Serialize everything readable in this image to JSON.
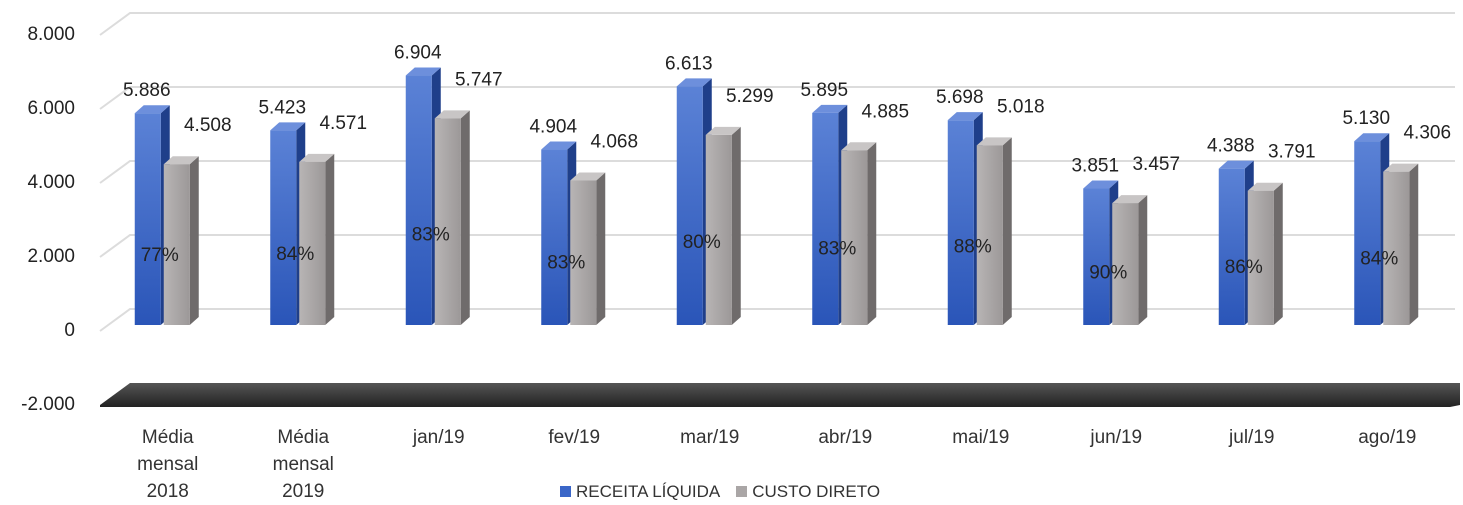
{
  "chart_data": {
    "type": "bar3d",
    "categories": [
      "Média mensal 2018",
      "Média mensal 2019",
      "jan/19",
      "fev/19",
      "mar/19",
      "abr/19",
      "mai/19",
      "jun/19",
      "jul/19",
      "ago/19"
    ],
    "series": [
      {
        "name": "RECEITA LÍQUIDA",
        "color": "#3a66c8",
        "values": [
          5886,
          5423,
          6904,
          4904,
          6613,
          5895,
          5698,
          3851,
          4388,
          5130
        ],
        "value_labels": [
          "5.886",
          "5.423",
          "6.904",
          "4.904",
          "6.613",
          "5.895",
          "5.698",
          "3.851",
          "4.388",
          "5.130"
        ]
      },
      {
        "name": "CUSTO DIRETO",
        "color": "#aaa6a6",
        "values": [
          4508,
          4571,
          5747,
          4068,
          5299,
          4885,
          5018,
          3457,
          3791,
          4306
        ],
        "value_labels": [
          "4.508",
          "4.571",
          "5.747",
          "4.068",
          "5.299",
          "4.885",
          "5.018",
          "3.457",
          "3.791",
          "4.306"
        ],
        "percent_labels": [
          "77%",
          "84%",
          "83%",
          "83%",
          "80%",
          "83%",
          "88%",
          "90%",
          "86%",
          "84%"
        ]
      }
    ],
    "ylim": [
      -2000,
      8000
    ],
    "yticks": [
      {
        "value": -2000,
        "label": "-2.000"
      },
      0,
      {
        "value": 2000,
        "label": "2.000"
      },
      {
        "value": 4000,
        "label": "4.000"
      },
      {
        "value": 6000,
        "label": "6.000"
      },
      {
        "value": 8000,
        "label": "8.000"
      }
    ],
    "grid": true
  }
}
